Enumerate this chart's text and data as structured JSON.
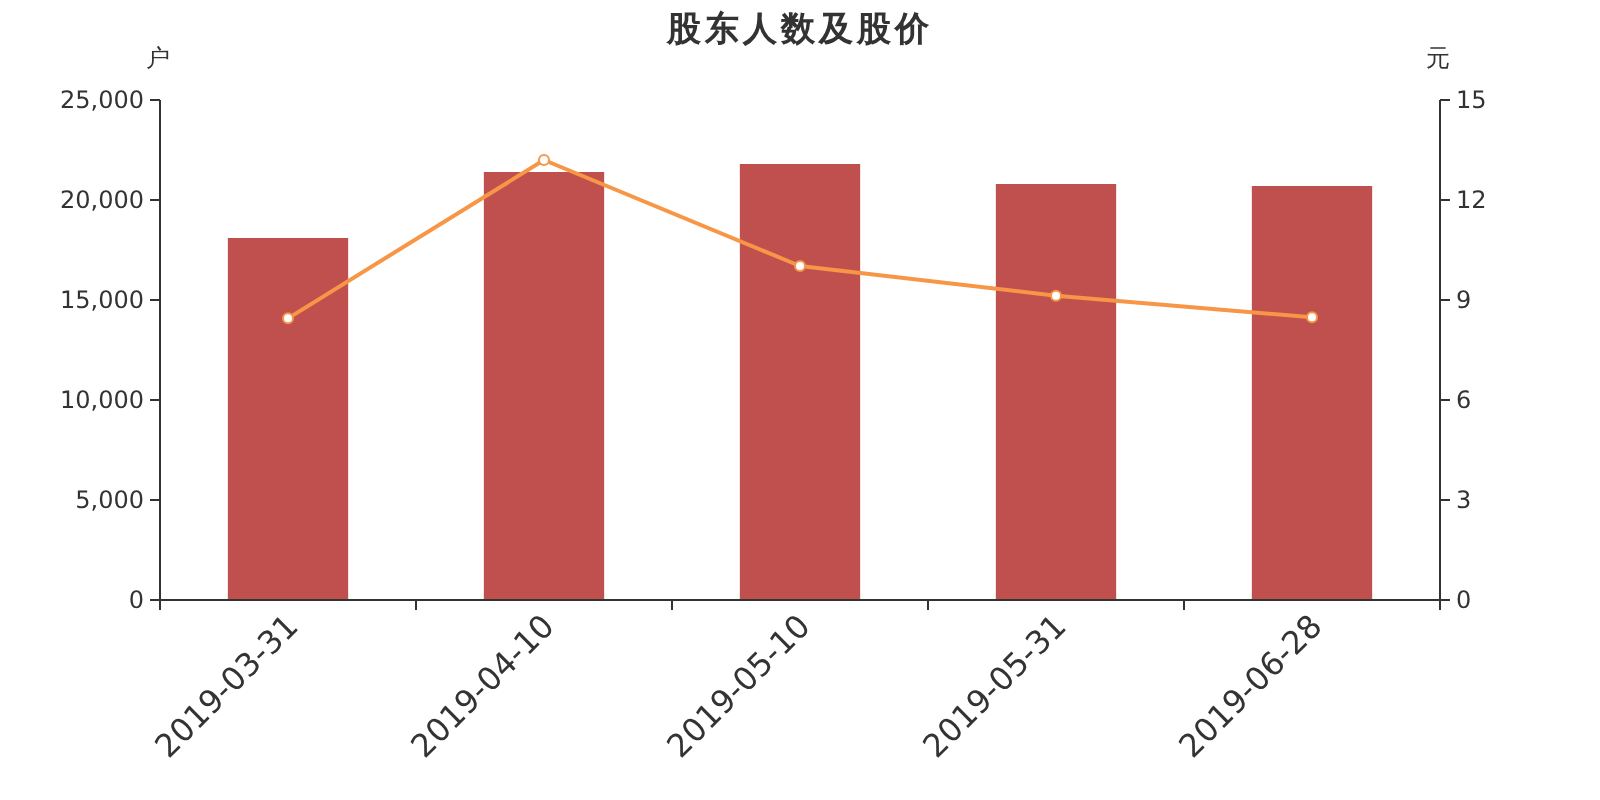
{
  "chart_data": {
    "type": "bar",
    "title": "股东人数及股价",
    "ylabel": "户",
    "y2label": "元",
    "categories": [
      "2019-03-31",
      "2019-04-10",
      "2019-05-10",
      "2019-05-31",
      "2019-06-28"
    ],
    "series": [
      {
        "color": "#c0504d",
        "values": [
          18100,
          21400,
          21800,
          20800,
          20700
        ]
      },
      {
        "type": "line",
        "axis": "y2",
        "color": "#f79646",
        "marker": "circle",
        "values": [
          8.45,
          13.2,
          10.02,
          9.13,
          8.48
        ]
      }
    ],
    "ylim": [
      0,
      25000
    ],
    "yticks": [
      {
        "value": 0,
        "label": "0"
      },
      {
        "value": 5000,
        "label": "5,000"
      },
      {
        "value": 10000,
        "label": "10,000"
      },
      {
        "value": 15000,
        "label": "15,000"
      },
      {
        "value": 20000,
        "label": "20,000"
      },
      {
        "value": 25000,
        "label": "25,000"
      }
    ],
    "y2lim": [
      0,
      15
    ],
    "y2ticks": [
      0,
      3,
      6,
      9,
      12,
      15
    ],
    "grid": false
  }
}
